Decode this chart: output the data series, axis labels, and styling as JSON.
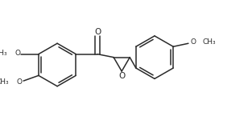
{
  "bg_color": "#ffffff",
  "line_color": "#2a2a2a",
  "line_width": 1.1,
  "font_size": 6.5,
  "fig_width": 3.13,
  "fig_height": 1.65,
  "dpi": 100,
  "xlim": [
    0,
    9.5
  ],
  "ylim": [
    -1.0,
    4.5
  ]
}
